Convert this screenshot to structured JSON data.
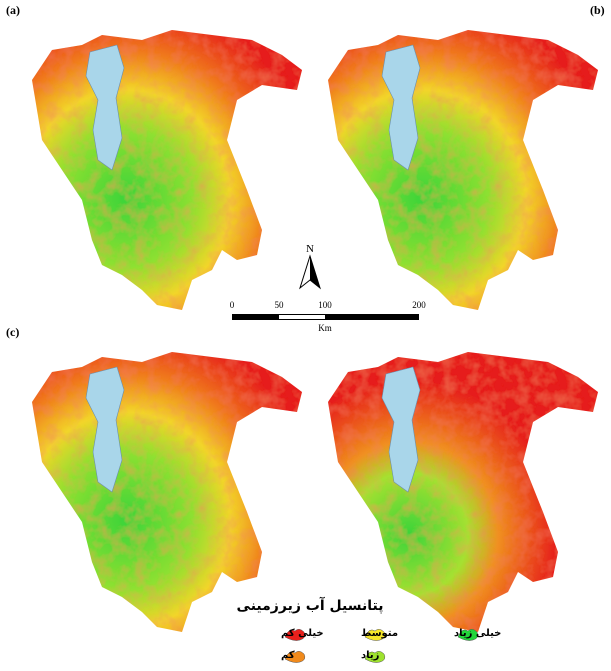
{
  "panels": [
    "(a)",
    "(b)",
    "(c)"
  ],
  "north": "N",
  "scale_bar": {
    "labels": [
      "0",
      "50",
      "100",
      "200"
    ],
    "unit": "Km"
  },
  "legend": {
    "title": "پتانسیل آب زیرزمینی",
    "items": [
      {
        "label": "خیلی کم",
        "color": "#e8201c"
      },
      {
        "label": "متوسط",
        "color": "#f5e62a"
      },
      {
        "label": "خیلی زیاد",
        "color": "#22d63a"
      },
      {
        "label": "کم",
        "color": "#f08a1c"
      },
      {
        "label": "زیاد",
        "color": "#9ee22e"
      }
    ]
  }
}
